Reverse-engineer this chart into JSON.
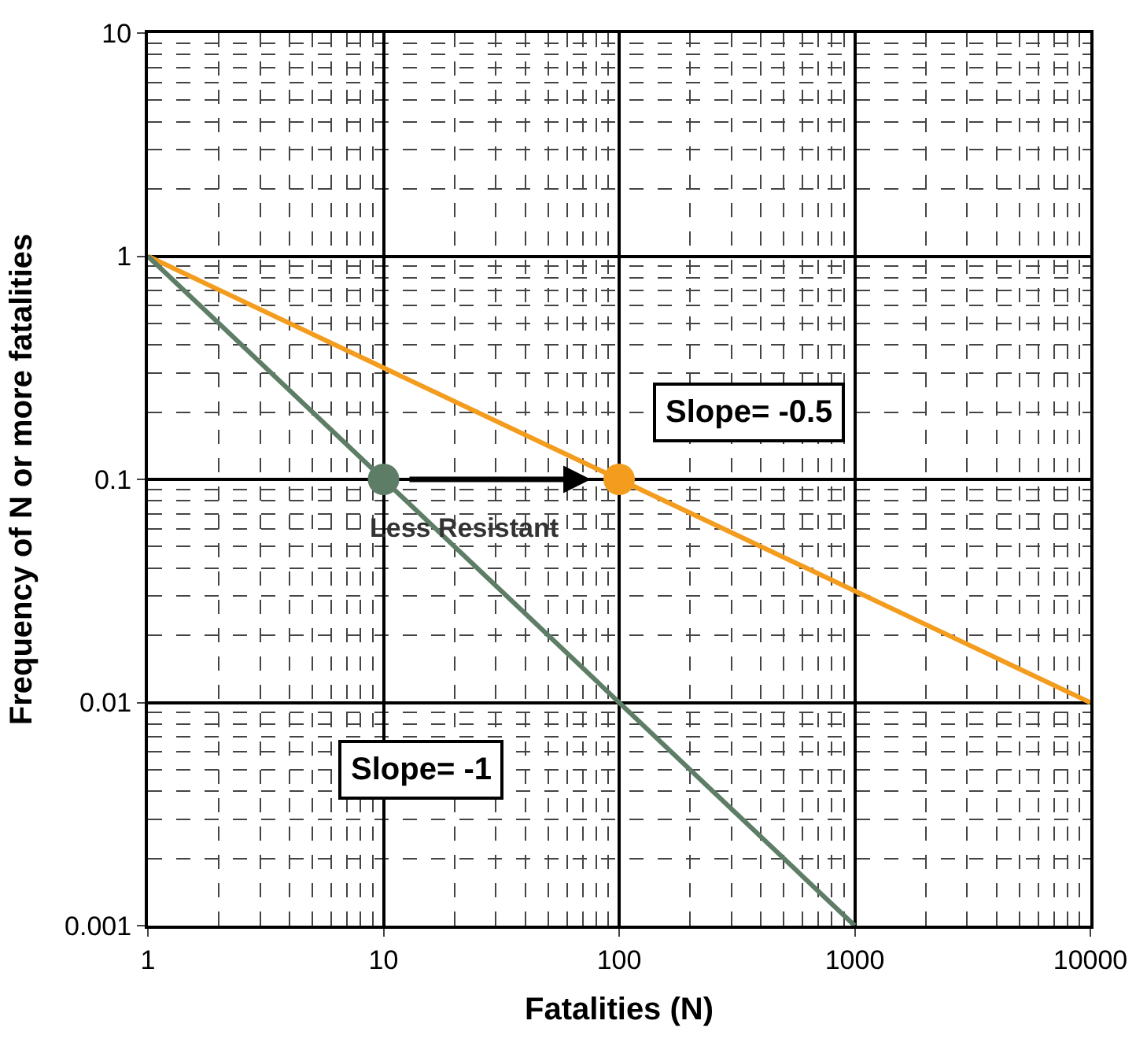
{
  "chart_data": {
    "type": "line",
    "xlabel": "Fatalities (N)",
    "ylabel": "Frequency of N or more fatalities",
    "log": "xy",
    "xlim": [
      1,
      10000
    ],
    "ylim": [
      0.001,
      10
    ],
    "xticks": [
      1,
      10,
      100,
      1000,
      10000
    ],
    "yticks": [
      0.001,
      0.01,
      0.1,
      1,
      10
    ],
    "grid": true,
    "series": [
      {
        "color": "#f39c1e",
        "x": [
          1,
          10000
        ],
        "values": [
          1,
          0.01
        ]
      },
      {
        "color": "#5e7d66",
        "x": [
          1,
          1000
        ],
        "values": [
          1,
          0.001
        ]
      },
      {
        "type": "scatter",
        "color": "#5e7d66",
        "x": [
          10
        ],
        "values": [
          0.1
        ]
      },
      {
        "type": "scatter",
        "color": "#f39c1e",
        "x": [
          100
        ],
        "values": [
          0.1
        ]
      }
    ],
    "annotations": [
      "Slope= -0.5",
      "Slope= -1",
      "Less Resistant"
    ]
  }
}
